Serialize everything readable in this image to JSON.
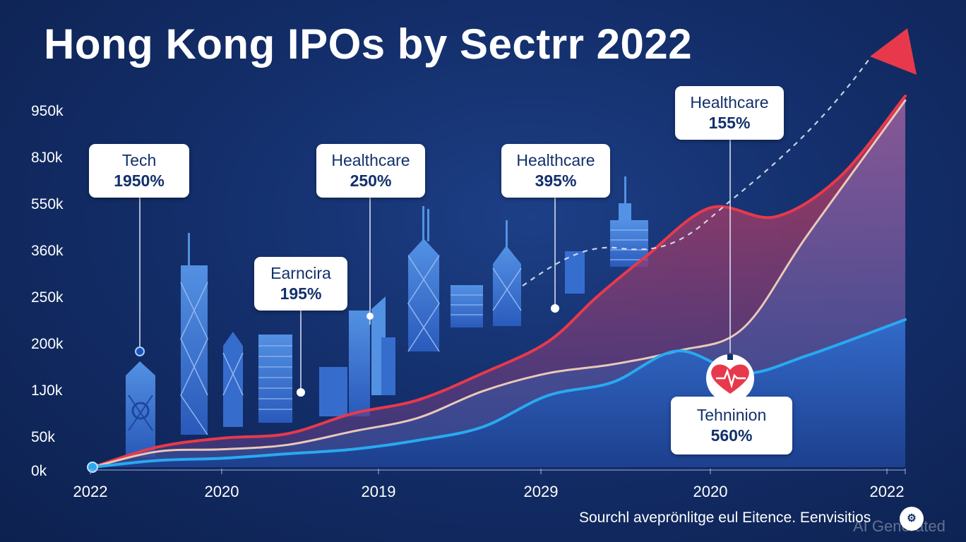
{
  "title": "Hong Kong IPOs by Sectrr 2022",
  "source": "Sourchl aveprönlitge eul Eitence. Eenvisitios",
  "watermark": "AI Generated",
  "colors": {
    "background": "#132e6a",
    "red_series": "#e8394c",
    "cream_series": "#e9c9b8",
    "blue_series": "#29a9f0",
    "skyline": "#3f7fe0",
    "callout_text": "#13306b"
  },
  "chart_data": {
    "type": "area",
    "title": "Hong Kong IPOs by Sectrr 2022",
    "x_tick_labels": [
      "2022",
      "2020",
      "2019",
      "2029",
      "2020",
      "2022"
    ],
    "y_tick_labels": [
      "0k",
      "50k",
      "1J0k",
      "200k",
      "250k",
      "360k",
      "550k",
      "8J0k",
      "950k"
    ],
    "series": [
      {
        "color": "#e8394c",
        "points": [
          [
            0,
            0
          ],
          [
            0.4,
            45
          ],
          [
            0.8,
            65
          ],
          [
            1.2,
            75
          ],
          [
            1.6,
            120
          ],
          [
            2.0,
            150
          ],
          [
            2.4,
            210
          ],
          [
            2.8,
            280
          ],
          [
            3.1,
            380
          ],
          [
            3.4,
            470
          ],
          [
            3.8,
            580
          ],
          [
            4.2,
            560
          ],
          [
            4.6,
            650
          ],
          [
            5.0,
            830
          ]
        ]
      },
      {
        "color": "#e9c9b8",
        "points": [
          [
            0,
            0
          ],
          [
            0.4,
            35
          ],
          [
            0.8,
            40
          ],
          [
            1.2,
            50
          ],
          [
            1.6,
            80
          ],
          [
            2.0,
            110
          ],
          [
            2.4,
            170
          ],
          [
            2.8,
            210
          ],
          [
            3.2,
            230
          ],
          [
            3.6,
            260
          ],
          [
            4.0,
            310
          ],
          [
            4.4,
            520
          ],
          [
            5.0,
            820
          ]
        ]
      },
      {
        "color": "#29a9f0",
        "points": [
          [
            0,
            0
          ],
          [
            0.4,
            15
          ],
          [
            0.8,
            20
          ],
          [
            1.2,
            30
          ],
          [
            1.6,
            40
          ],
          [
            2.0,
            60
          ],
          [
            2.4,
            90
          ],
          [
            2.8,
            160
          ],
          [
            3.2,
            190
          ],
          [
            3.6,
            260
          ],
          [
            4.0,
            210
          ],
          [
            4.4,
            250
          ],
          [
            5.0,
            330
          ]
        ]
      }
    ],
    "callouts": [
      {
        "label": "Tech",
        "value": "1950%"
      },
      {
        "label": "Earncira",
        "value": "195%"
      },
      {
        "label": "Healthcare",
        "value": "250%"
      },
      {
        "label": "Healthcare",
        "value": "395%"
      },
      {
        "label": "Healthcare",
        "value": "155%"
      },
      {
        "label": "Tehninion",
        "value": "560%",
        "icon": "heart-icon"
      }
    ],
    "legend": "none",
    "grid": false
  }
}
